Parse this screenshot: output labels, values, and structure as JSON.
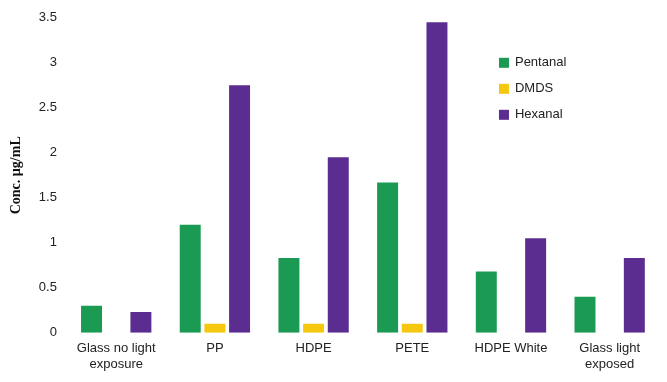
{
  "chart_data": {
    "type": "bar",
    "y_label": "Conc. µg/mL",
    "categories": [
      "Glass no light exposure",
      "PP",
      "HDPE",
      "PETE",
      "HDPE White",
      "Glass light exposed"
    ],
    "series": [
      {
        "name": "Pentanal",
        "color": "#1a9a52",
        "values": [
          0.3,
          1.2,
          0.83,
          1.67,
          0.68,
          0.4
        ]
      },
      {
        "name": "DMDS",
        "color": "#f5c80f",
        "values": [
          null,
          0.1,
          0.1,
          0.1,
          null,
          null
        ]
      },
      {
        "name": "Hexanal",
        "color": "#5c2d91",
        "values": [
          0.23,
          2.75,
          1.95,
          3.45,
          1.05,
          0.83
        ]
      }
    ],
    "ylim": [
      0,
      3.5
    ],
    "yticks": [
      0,
      0.5,
      1,
      1.5,
      2,
      2.5,
      3,
      3.5
    ],
    "grid": false,
    "legend": "upper right",
    "data_labels": false
  }
}
